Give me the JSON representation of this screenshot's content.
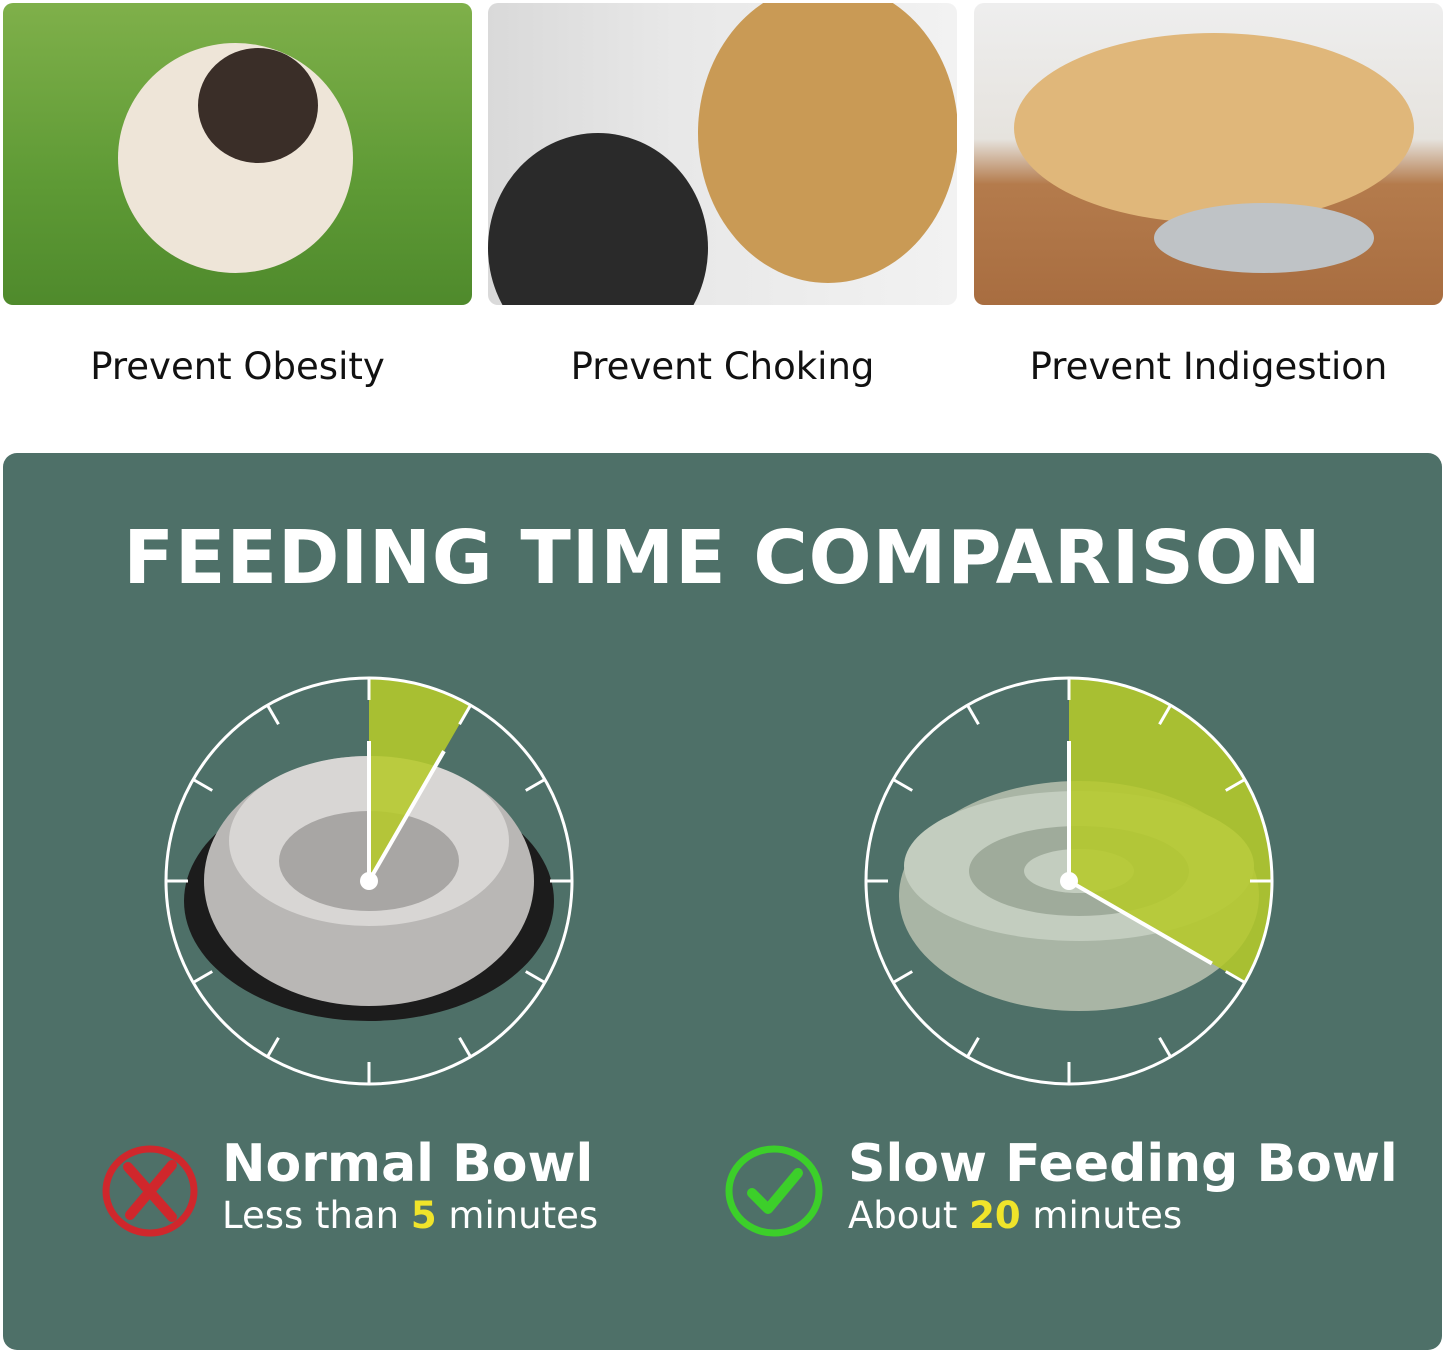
{
  "benefits": [
    {
      "label": "Prevent Obesity",
      "image": "pug-on-grass"
    },
    {
      "label": "Prevent Choking",
      "image": "golden-retriever-mouth-check"
    },
    {
      "label": "Prevent Indigestion",
      "image": "labrador-lying-by-bowl"
    }
  ],
  "comparison": {
    "title": "FEEDING TIME COMPARISON",
    "items": [
      {
        "name": "Normal Bowl",
        "prefix": "Less than ",
        "value": "5",
        "suffix": " minutes",
        "minutes": 5,
        "status": "bad",
        "icon": "x-circle-icon",
        "bowl": "stainless-steel-bowl"
      },
      {
        "name": "Slow Feeding Bowl",
        "prefix": "About ",
        "value": "20",
        "suffix": " minutes",
        "minutes": 20,
        "status": "good",
        "icon": "check-circle-icon",
        "bowl": "maze-slow-feeder-bowl"
      }
    ],
    "clock_total_minutes": 60
  },
  "colors": {
    "panel": "#4e7068",
    "wedge": "#b5c92a",
    "highlight": "#f0e42a",
    "bad": "#d0272c",
    "good": "#3ccf2a"
  }
}
